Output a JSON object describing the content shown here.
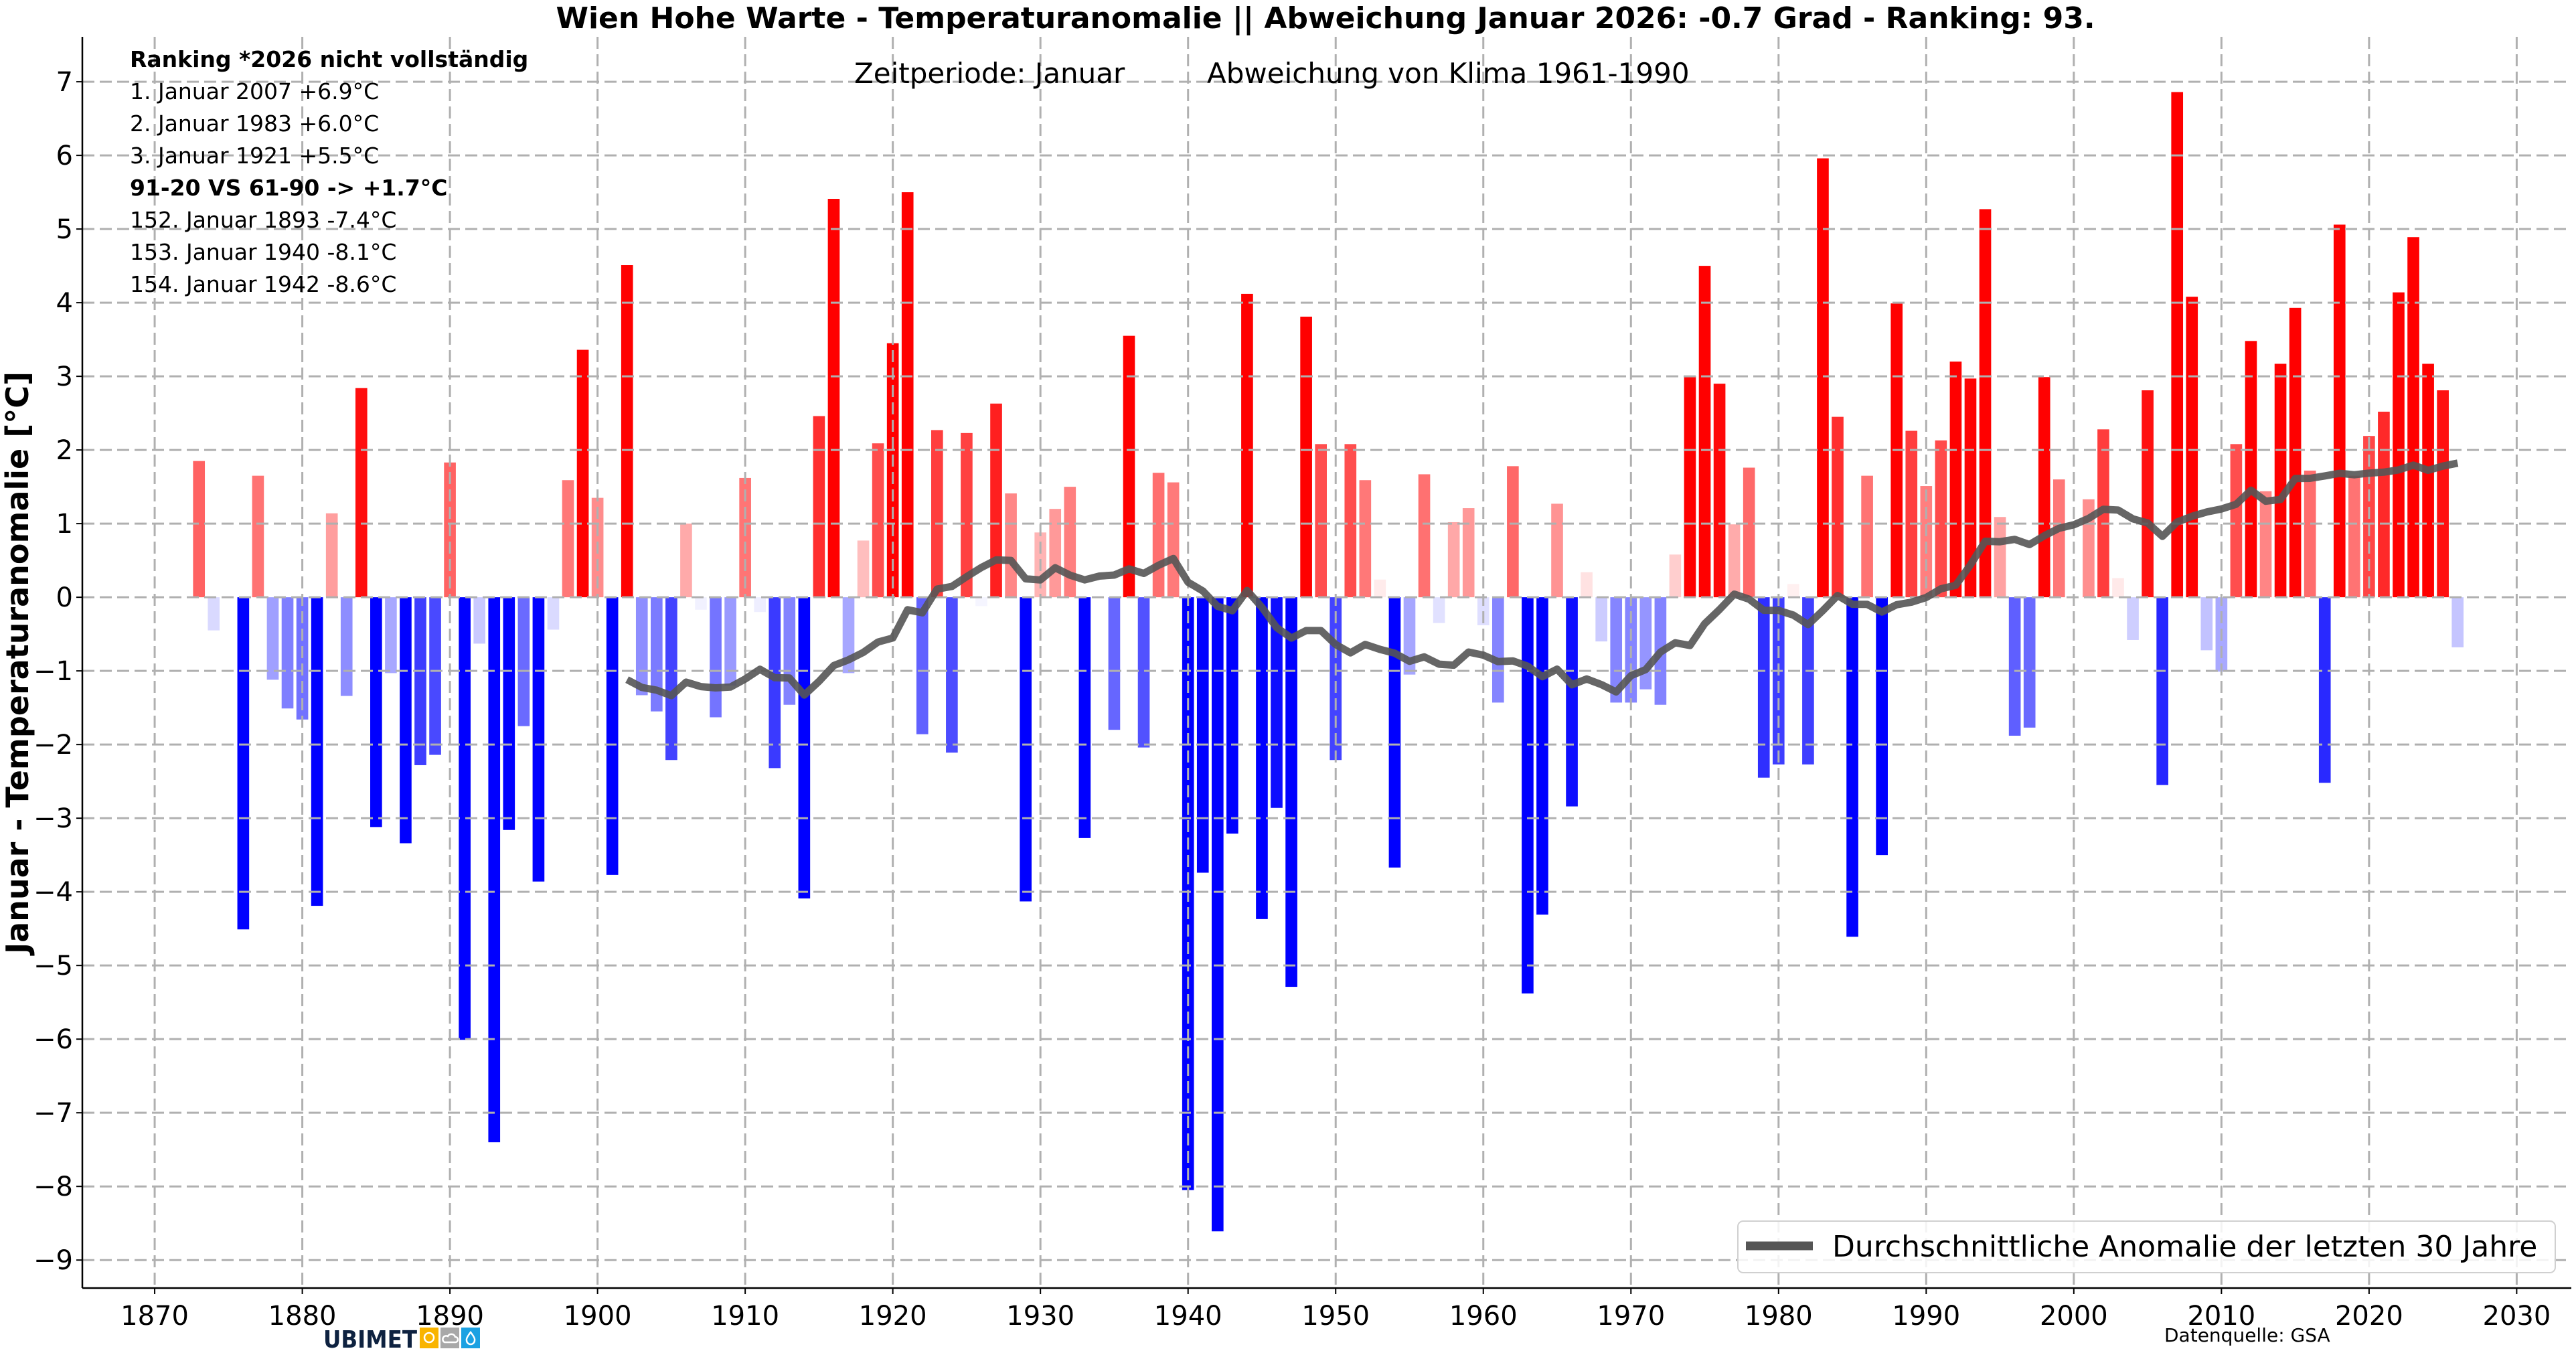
{
  "colors": {
    "positive": "#ff0000",
    "negative": "#0000ff",
    "running_mean": "#555555",
    "grid": "#b0b0b0",
    "logo_yellow": "#f9b400",
    "logo_grey": "#a8a8a8",
    "logo_blue": "#1ba1e2"
  },
  "logo": {
    "text": "UBIMET",
    "icons": [
      "sun-icon",
      "cloud-icon",
      "drop-icon"
    ]
  },
  "source": "Datenquelle: GSA",
  "chart_data": {
    "type": "bar",
    "title": "Wien Hohe Warte - Temperaturanomalie || Abweichung Januar 2026: -0.7 Grad - Ranking: 93.",
    "subtitle_left": "Zeitperiode: Januar",
    "subtitle_right": "Abweichung von Klima 1961-1990",
    "xlabel": "",
    "ylabel": "Januar - Temperaturanomalie [°C]",
    "xlim": [
      1865.1,
      2033.7
    ],
    "ylim": [
      -9.38,
      7.61
    ],
    "grid": true,
    "legend_position": "bottom-right",
    "xticks": [
      "1870",
      "1880",
      "1890",
      "1900",
      "1910",
      "1920",
      "1930",
      "1940",
      "1950",
      "1960",
      "1970",
      "1980",
      "1990",
      "2000",
      "2010",
      "2020",
      "2030"
    ],
    "yticks": [
      "−9",
      "−8",
      "−7",
      "−6",
      "−5",
      "−4",
      "−3",
      "−2",
      "−1",
      "0",
      "1",
      "2",
      "3",
      "4",
      "5",
      "6",
      "7"
    ],
    "annotations": [
      {
        "text": "Ranking  *2026 nicht vollständig",
        "bold": true
      },
      {
        "text": "1.  Januar 2007  +6.9°C",
        "bold": false
      },
      {
        "text": "2.  Januar 1983  +6.0°C",
        "bold": false
      },
      {
        "text": "3.  Januar 1921  +5.5°C",
        "bold": false
      },
      {
        "text": "91-20  VS  61-90 -> +1.7°C",
        "bold": true
      },
      {
        "text": "152.  Januar 1893  -7.4°C",
        "bold": false
      },
      {
        "text": "153.  Januar 1940  -8.1°C",
        "bold": false
      },
      {
        "text": "154.  Januar 1942  -8.6°C",
        "bold": false
      }
    ],
    "x_start": 1873,
    "values": [
      1.85,
      -0.45,
      0.02,
      -4.51,
      1.65,
      -1.12,
      -1.51,
      -1.66,
      -4.19,
      1.14,
      -1.34,
      2.84,
      -3.12,
      -1.03,
      -3.34,
      -2.28,
      -2.14,
      1.83,
      -6.01,
      -0.63,
      -7.4,
      -3.16,
      -1.75,
      -3.86,
      -0.44,
      1.59,
      3.36,
      1.35,
      -3.77,
      4.51,
      -1.33,
      -1.55,
      -2.21,
      1.0,
      -0.17,
      -1.63,
      -1.2,
      1.62,
      -0.2,
      -2.32,
      -1.46,
      -4.09,
      2.46,
      5.41,
      -1.03,
      0.77,
      2.09,
      3.45,
      5.5,
      -1.86,
      2.27,
      -2.11,
      2.23,
      -0.12,
      2.63,
      1.41,
      -4.13,
      0.88,
      1.2,
      1.5,
      -3.27,
      0.0,
      -1.8,
      3.55,
      -2.04,
      1.69,
      1.56,
      -8.05,
      -3.74,
      -8.61,
      -3.21,
      4.12,
      -4.37,
      -2.86,
      -5.29,
      3.81,
      2.08,
      -2.21,
      2.08,
      1.59,
      0.24,
      -3.67,
      -1.05,
      1.67,
      -0.35,
      1.02,
      1.21,
      -0.38,
      -1.43,
      1.78,
      -5.38,
      -4.31,
      1.27,
      -2.84,
      0.34,
      -0.6,
      -1.43,
      -1.43,
      -1.25,
      -1.46,
      0.58,
      3.0,
      4.5,
      2.9,
      0.99,
      1.76,
      -2.45,
      -2.27,
      0.18,
      -2.27,
      5.96,
      2.45,
      -4.61,
      1.65,
      -3.5,
      3.99,
      2.26,
      1.51,
      2.13,
      3.2,
      2.97,
      5.27,
      1.09,
      -1.88,
      -1.77,
      2.99,
      1.6,
      0.0,
      1.33,
      2.28,
      0.26,
      -0.58,
      2.81,
      -2.55,
      6.86,
      4.08,
      -0.72,
      -1.01,
      2.08,
      3.48,
      1.44,
      3.17,
      3.93,
      1.72,
      -2.52,
      5.06,
      1.65,
      2.19,
      2.52,
      4.14,
      4.89,
      3.17,
      2.81,
      -0.68
    ],
    "series": [
      {
        "name": "Durchschnittliche Anomalie der letzten 30 Jahre",
        "type": "line",
        "window_years": 30
      }
    ]
  }
}
